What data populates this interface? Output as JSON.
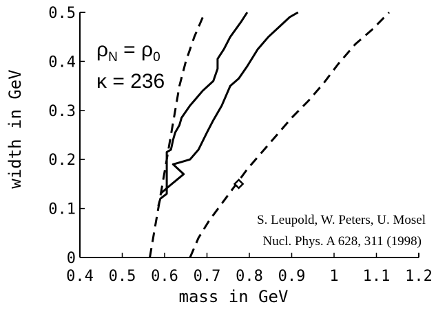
{
  "chart_data": {
    "type": "line",
    "title": "",
    "xlabel": "mass in GeV",
    "ylabel": "width in GeV",
    "xlim": [
      0.4,
      1.2
    ],
    "ylim": [
      0,
      0.5
    ],
    "x_ticks": [
      0.4,
      0.5,
      0.6,
      0.7,
      0.8,
      0.9,
      1,
      1.1,
      1.2
    ],
    "x_tick_labels": [
      "0.4",
      "0.5",
      "0.6",
      "0.7",
      "0.8",
      "0.9",
      "1",
      "1.1",
      "1.2"
    ],
    "y_ticks": [
      0,
      0.1,
      0.2,
      0.3,
      0.4,
      0.5
    ],
    "y_tick_labels": [
      "0",
      "0.1",
      "0.2",
      "0.3",
      "0.4",
      "0.5"
    ],
    "grid": false,
    "series": [
      {
        "style": "dashed",
        "points": [
          [
            0.565,
            0.0
          ],
          [
            0.575,
            0.05
          ],
          [
            0.585,
            0.1
          ],
          [
            0.595,
            0.15
          ],
          [
            0.605,
            0.2
          ],
          [
            0.615,
            0.25
          ],
          [
            0.625,
            0.3
          ],
          [
            0.635,
            0.35
          ],
          [
            0.65,
            0.4
          ],
          [
            0.67,
            0.45
          ],
          [
            0.695,
            0.5
          ]
        ]
      },
      {
        "style": "solid",
        "points": [
          [
            0.585,
            0.105
          ],
          [
            0.59,
            0.12
          ],
          [
            0.605,
            0.13
          ],
          [
            0.605,
            0.215
          ],
          [
            0.615,
            0.22
          ],
          [
            0.62,
            0.24
          ],
          [
            0.625,
            0.255
          ],
          [
            0.635,
            0.27
          ],
          [
            0.64,
            0.285
          ],
          [
            0.66,
            0.31
          ],
          [
            0.67,
            0.32
          ],
          [
            0.69,
            0.34
          ],
          [
            0.715,
            0.36
          ],
          [
            0.725,
            0.385
          ],
          [
            0.725,
            0.405
          ],
          [
            0.74,
            0.425
          ],
          [
            0.755,
            0.45
          ],
          [
            0.78,
            0.48
          ],
          [
            0.795,
            0.5
          ]
        ]
      },
      {
        "style": "solid",
        "points": [
          [
            0.59,
            0.13
          ],
          [
            0.61,
            0.145
          ],
          [
            0.645,
            0.17
          ],
          [
            0.62,
            0.19
          ],
          [
            0.64,
            0.195
          ],
          [
            0.66,
            0.2
          ],
          [
            0.68,
            0.22
          ],
          [
            0.7,
            0.255
          ],
          [
            0.715,
            0.28
          ],
          [
            0.735,
            0.31
          ],
          [
            0.755,
            0.35
          ],
          [
            0.775,
            0.365
          ],
          [
            0.795,
            0.39
          ],
          [
            0.82,
            0.425
          ],
          [
            0.845,
            0.45
          ],
          [
            0.87,
            0.47
          ],
          [
            0.895,
            0.49
          ],
          [
            0.915,
            0.5
          ]
        ]
      },
      {
        "style": "dashed",
        "points": [
          [
            0.66,
            0.0
          ],
          [
            0.68,
            0.04
          ],
          [
            0.705,
            0.075
          ],
          [
            0.735,
            0.11
          ],
          [
            0.765,
            0.145
          ],
          [
            0.795,
            0.18
          ],
          [
            0.83,
            0.215
          ],
          [
            0.865,
            0.25
          ],
          [
            0.9,
            0.285
          ],
          [
            0.94,
            0.32
          ],
          [
            0.975,
            0.355
          ],
          [
            1.01,
            0.395
          ],
          [
            1.05,
            0.435
          ],
          [
            1.09,
            0.465
          ],
          [
            1.13,
            0.5
          ]
        ]
      }
    ],
    "marker": {
      "shape": "diamond",
      "x": 0.775,
      "y": 0.15
    },
    "annotations": {
      "line1": "ρ_N = ρ_0",
      "line1_main": "ρ",
      "line1_sub1": "N",
      "line1_eq": " = ρ",
      "line1_sub2": "0",
      "line2": "κ = 236",
      "citation_1": "S. Leupold, W. Peters, U. Mosel",
      "citation_2": "Nucl. Phys. A 628, 311 (1998)"
    }
  }
}
